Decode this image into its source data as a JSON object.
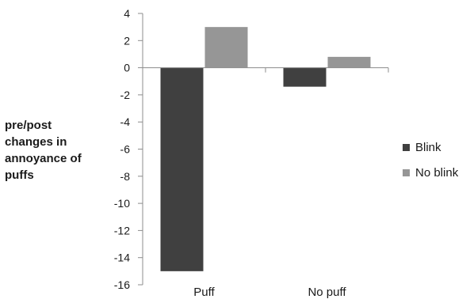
{
  "chart_data": {
    "type": "bar",
    "categories": [
      "Puff",
      "No puff"
    ],
    "series": [
      {
        "name": "Blink",
        "values": [
          -15,
          -1.4
        ],
        "color": "#404040"
      },
      {
        "name": "No blink",
        "values": [
          3.0,
          0.8
        ],
        "color": "#969696"
      }
    ],
    "ylabel_lines": [
      "pre/post",
      "changes in",
      "annoyance of",
      "puffs"
    ],
    "ylim": [
      -16,
      4
    ],
    "yticks": [
      4,
      2,
      0,
      -2,
      -4,
      -6,
      -8,
      -10,
      -12,
      -14,
      -16
    ],
    "ytick_labels": [
      "4",
      "2",
      "0",
      "-2",
      "-4",
      "-6",
      "-8",
      "-10",
      "-12",
      "-14",
      "-16"
    ],
    "grid": false,
    "legend_position": "right"
  }
}
